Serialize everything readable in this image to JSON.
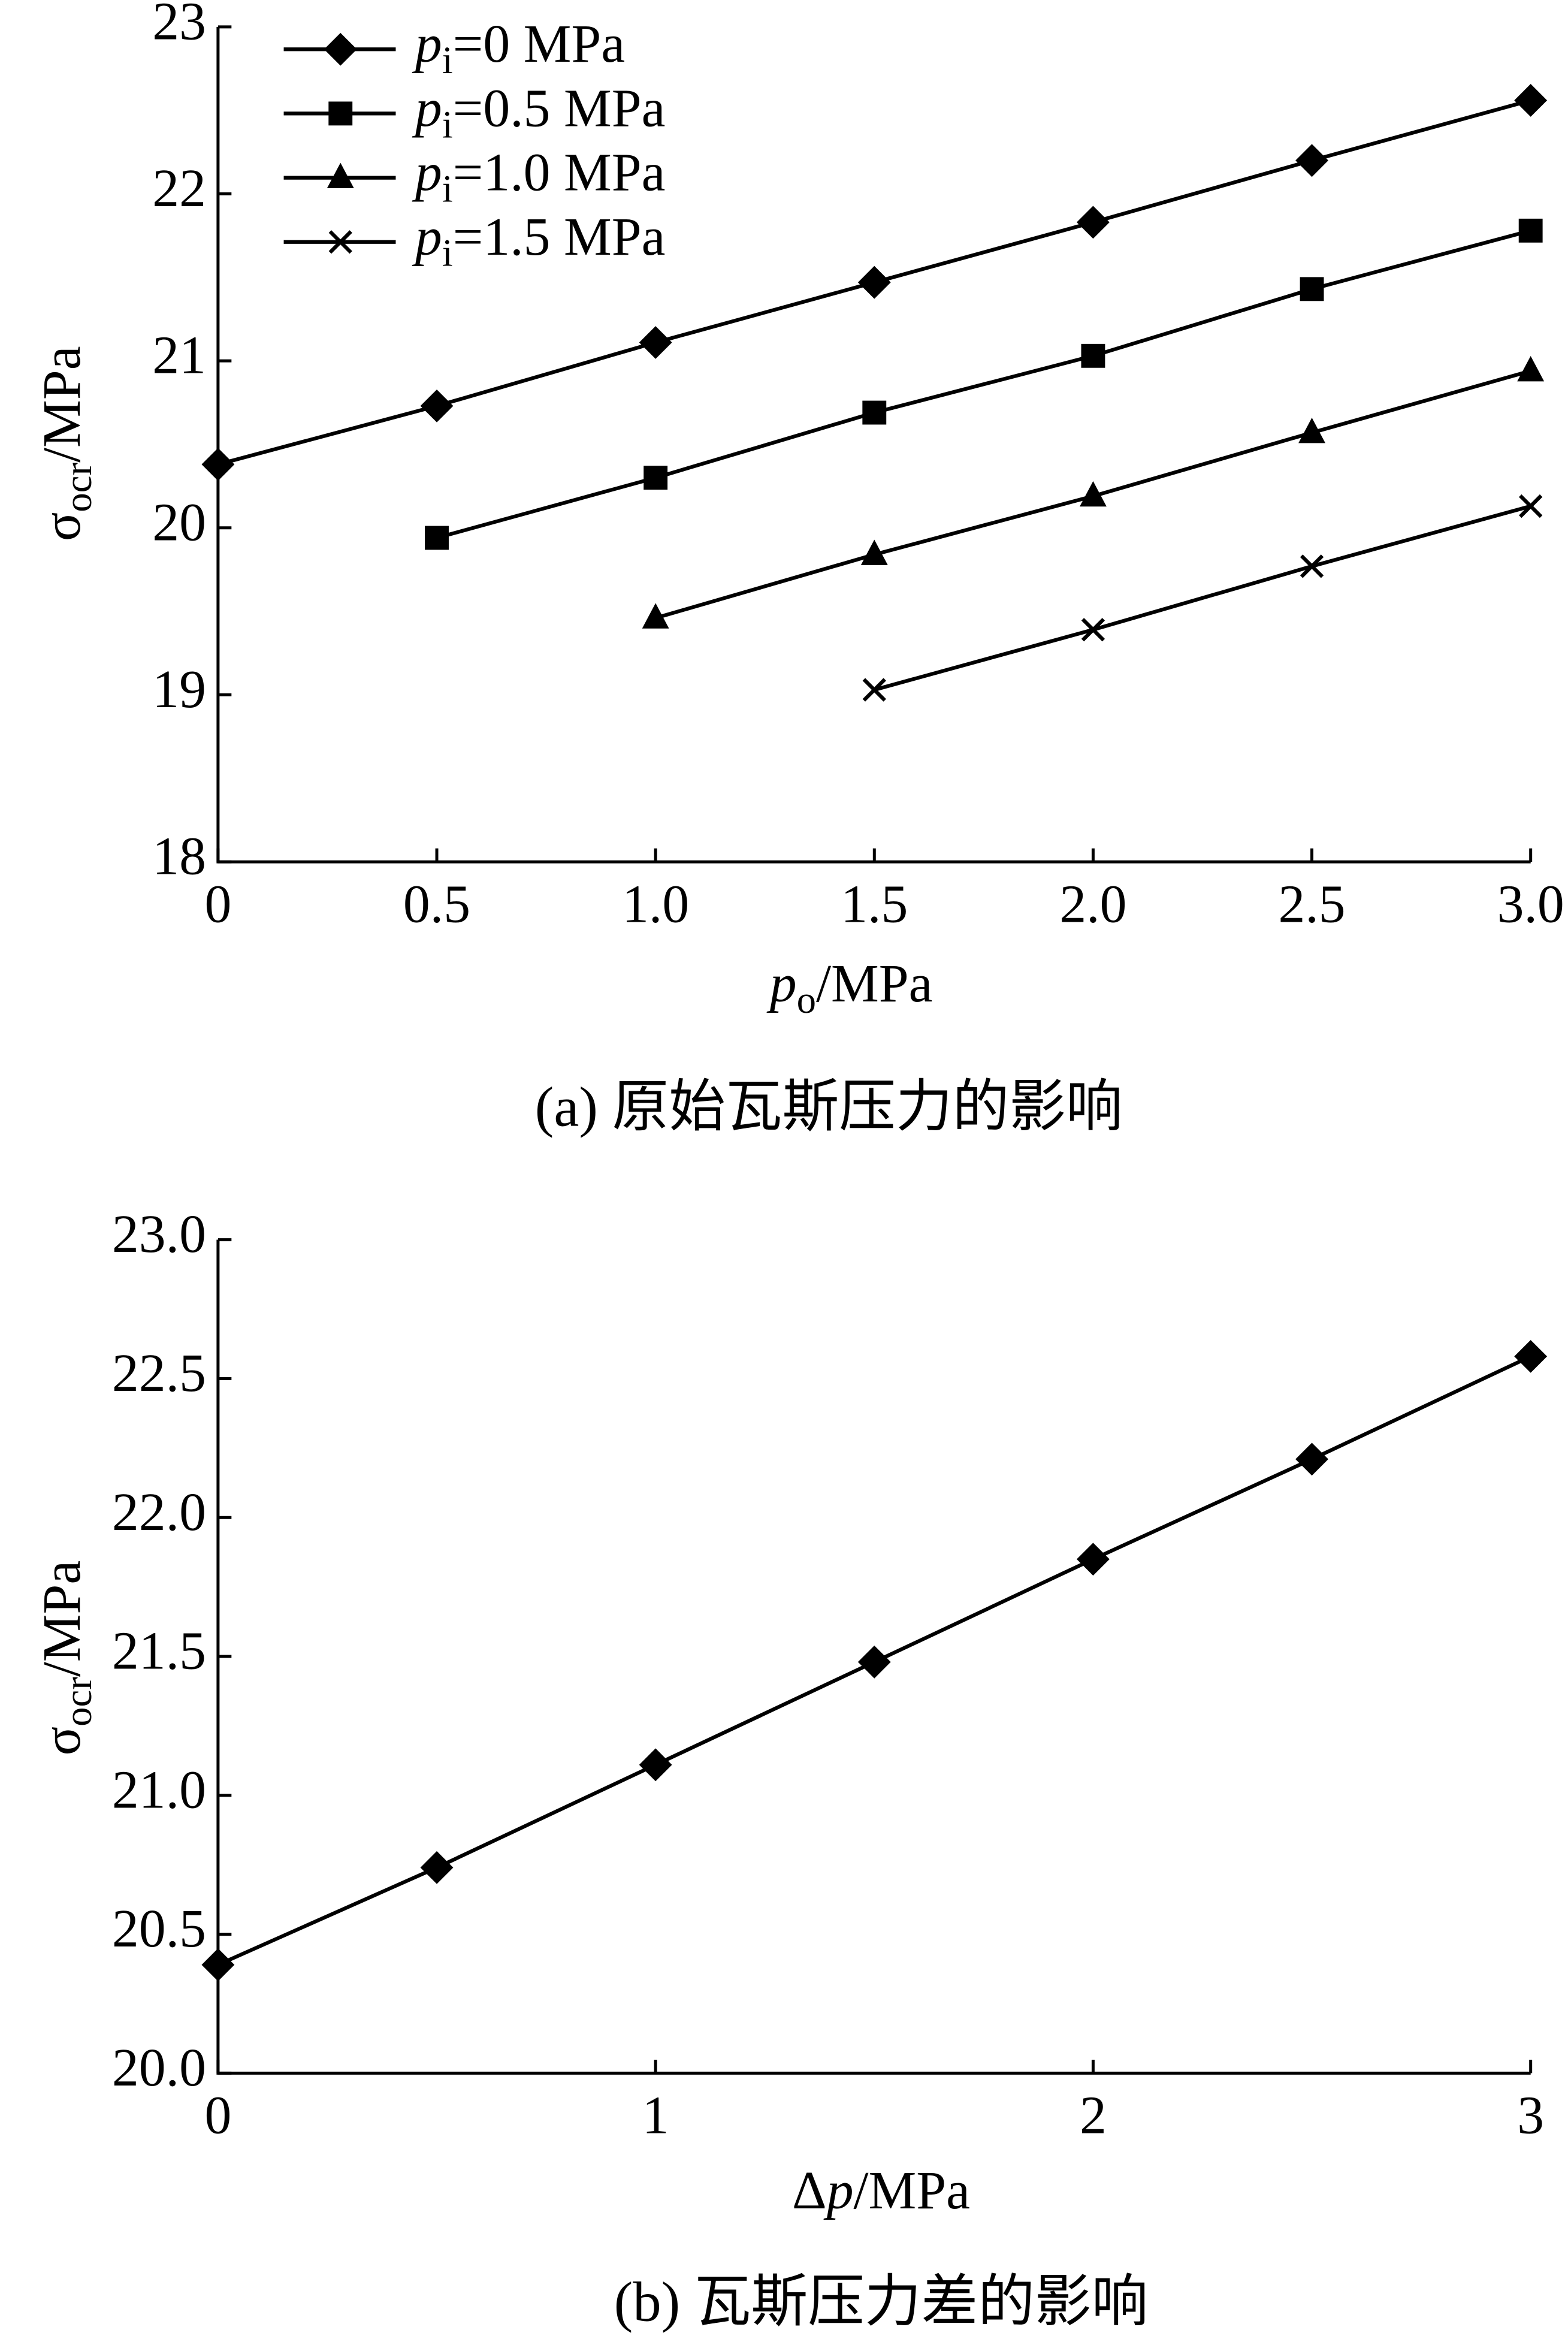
{
  "chart_data": [
    {
      "type": "line",
      "xlabel": "po/MPa",
      "ylabel": "σocr/MPa",
      "caption": "(a)  原始瓦斯压力的影响",
      "xlim": [
        0,
        3
      ],
      "xticks": [
        0,
        0.5,
        {
          "value": 1,
          "label": "1.0"
        },
        1.5,
        {
          "value": 2,
          "label": "2.0"
        },
        2.5,
        {
          "value": 3,
          "label": "3.0"
        }
      ],
      "ylim": [
        18,
        23
      ],
      "yticks": [
        18,
        19,
        20,
        21,
        22,
        23
      ],
      "legend": "upper left",
      "series": [
        {
          "name": "pi=0 MPa",
          "color": "#000000",
          "marker": "diamond",
          "x": [
            0,
            0.5,
            1,
            1.5,
            2,
            2.5,
            3
          ],
          "values": [
            20.38,
            20.73,
            21.11,
            21.47,
            21.83,
            22.2,
            22.56
          ]
        },
        {
          "name": "pi=0.5 MPa",
          "color": "#000000",
          "marker": "square",
          "x": [
            0.5,
            1,
            1.5,
            2,
            2.5,
            3
          ],
          "values": [
            19.94,
            20.3,
            20.69,
            21.03,
            21.43,
            21.78
          ]
        },
        {
          "name": "pi=1.0 MPa",
          "color": "#000000",
          "marker": "triangle",
          "x": [
            1,
            1.5,
            2,
            2.5,
            3
          ],
          "values": [
            19.46,
            19.84,
            20.19,
            20.57,
            20.94
          ]
        },
        {
          "name": "pi=1.5 MPa",
          "color": "#000000",
          "marker": "x",
          "x": [
            1.5,
            2,
            2.5,
            3
          ],
          "values": [
            19.03,
            19.39,
            19.77,
            20.13
          ]
        }
      ]
    },
    {
      "type": "line",
      "xlabel": "Δp/MPa",
      "ylabel": "σocr/MPa",
      "caption": "(b)  瓦斯压力差的影响",
      "xlim": [
        0,
        3
      ],
      "xticks": [
        0,
        1,
        2,
        3
      ],
      "ylim": [
        20,
        23
      ],
      "yticks": [
        {
          "value": 20,
          "label": "20.0"
        },
        20.5,
        {
          "value": 21,
          "label": "21.0"
        },
        21.5,
        {
          "value": 22,
          "label": "22.0"
        },
        22.5,
        {
          "value": 23,
          "label": "23.0"
        }
      ],
      "series": [
        {
          "color": "#000000",
          "marker": "diamond",
          "x": [
            0,
            0.5,
            1,
            1.5,
            2,
            2.5,
            3
          ],
          "values": [
            20.39,
            20.74,
            21.11,
            21.48,
            21.85,
            22.21,
            22.58
          ]
        }
      ]
    }
  ]
}
